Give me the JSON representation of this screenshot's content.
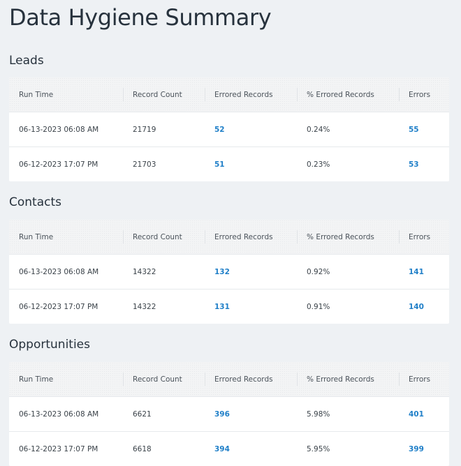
{
  "page_title": "Data Hygiene Summary",
  "columns": [
    "Run Time",
    "Record Count",
    "Errored Records",
    "% Errored Records",
    "Errors"
  ],
  "sections": [
    {
      "title": "Leads",
      "rows": [
        {
          "run_time": "06-13-2023 06:08 AM",
          "record_count": "21719",
          "errored_records": "52",
          "pct_errored": "0.24%",
          "errors": "55"
        },
        {
          "run_time": "06-12-2023 17:07 PM",
          "record_count": "21703",
          "errored_records": "51",
          "pct_errored": "0.23%",
          "errors": "53"
        }
      ]
    },
    {
      "title": "Contacts",
      "rows": [
        {
          "run_time": "06-13-2023 06:08 AM",
          "record_count": "14322",
          "errored_records": "132",
          "pct_errored": "0.92%",
          "errors": "141"
        },
        {
          "run_time": "06-12-2023 17:07 PM",
          "record_count": "14322",
          "errored_records": "131",
          "pct_errored": "0.91%",
          "errors": "140"
        }
      ]
    },
    {
      "title": "Opportunities",
      "rows": [
        {
          "run_time": "06-13-2023 06:08 AM",
          "record_count": "6621",
          "errored_records": "396",
          "pct_errored": "5.98%",
          "errors": "401"
        },
        {
          "run_time": "06-12-2023 17:07 PM",
          "record_count": "6618",
          "errored_records": "394",
          "pct_errored": "5.95%",
          "errors": "399"
        }
      ]
    }
  ],
  "colors": {
    "background": "#eef1f4",
    "link": "#1f7fc8",
    "text": "#27323d",
    "header_bg": "#f3f4f5",
    "card": "#ffffff"
  }
}
